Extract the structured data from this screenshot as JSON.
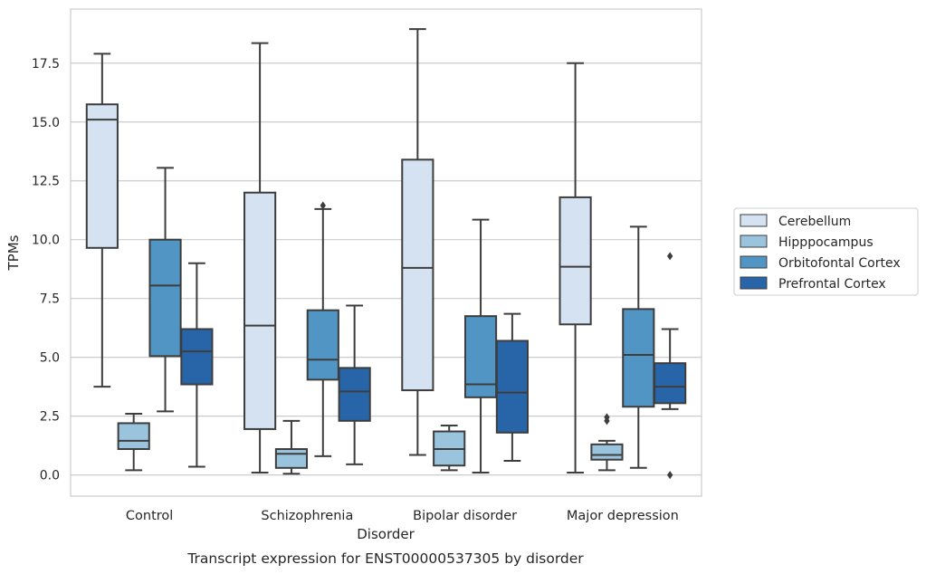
{
  "chart_data": {
    "type": "boxplot",
    "caption": "Transcript expression for ENST00000537305 by disorder",
    "xlabel": "Disorder",
    "ylabel": "TPMs",
    "ylim": [
      -0.9,
      19.8
    ],
    "yticks": [
      0.0,
      2.5,
      5.0,
      7.5,
      10.0,
      12.5,
      15.0,
      17.5
    ],
    "ytick_labels": [
      "0.0",
      "2.5",
      "5.0",
      "7.5",
      "10.0",
      "12.5",
      "15.0",
      "17.5"
    ],
    "grid": "horizontal",
    "legend_position": "right",
    "categories": [
      "Control",
      "Schizophrenia",
      "Bipolar disorder",
      "Major depression"
    ],
    "series": [
      {
        "name": "Cerebellum",
        "color": "#d4e2f1",
        "boxes": [
          {
            "whislo": 3.75,
            "q1": 9.65,
            "med": 15.1,
            "q3": 15.75,
            "whishi": 17.9,
            "fliers": []
          },
          {
            "whislo": 0.1,
            "q1": 1.95,
            "med": 6.35,
            "q3": 12.0,
            "whishi": 18.35,
            "fliers": []
          },
          {
            "whislo": 0.85,
            "q1": 3.6,
            "med": 8.8,
            "q3": 13.4,
            "whishi": 18.95,
            "fliers": []
          },
          {
            "whislo": 0.1,
            "q1": 6.4,
            "med": 8.85,
            "q3": 11.8,
            "whishi": 17.5,
            "fliers": []
          }
        ]
      },
      {
        "name": "Hipppocampus",
        "color": "#9ac3dd",
        "boxes": [
          {
            "whislo": 0.2,
            "q1": 1.1,
            "med": 1.45,
            "q3": 2.2,
            "whishi": 2.6,
            "fliers": []
          },
          {
            "whislo": 0.05,
            "q1": 0.3,
            "med": 0.9,
            "q3": 1.1,
            "whishi": 2.3,
            "fliers": []
          },
          {
            "whislo": 0.2,
            "q1": 0.4,
            "med": 1.1,
            "q3": 1.85,
            "whishi": 2.1,
            "fliers": []
          },
          {
            "whislo": 0.2,
            "q1": 0.65,
            "med": 0.85,
            "q3": 1.3,
            "whishi": 1.45,
            "fliers": [
              2.3,
              2.45
            ]
          }
        ]
      },
      {
        "name": "Orbitofontal Cortex",
        "color": "#5195c5",
        "boxes": [
          {
            "whislo": 2.7,
            "q1": 5.05,
            "med": 8.05,
            "q3": 10.0,
            "whishi": 13.05,
            "fliers": []
          },
          {
            "whislo": 0.8,
            "q1": 4.05,
            "med": 4.9,
            "q3": 7.0,
            "whishi": 11.3,
            "fliers": [
              11.45
            ]
          },
          {
            "whislo": 0.1,
            "q1": 3.3,
            "med": 3.85,
            "q3": 6.75,
            "whishi": 10.85,
            "fliers": []
          },
          {
            "whislo": 0.3,
            "q1": 2.9,
            "med": 5.1,
            "q3": 7.05,
            "whishi": 10.55,
            "fliers": []
          }
        ]
      },
      {
        "name": "Prefrontal Cortex",
        "color": "#2765a8",
        "boxes": [
          {
            "whislo": 0.35,
            "q1": 3.85,
            "med": 5.25,
            "q3": 6.2,
            "whishi": 9.0,
            "fliers": []
          },
          {
            "whislo": 0.45,
            "q1": 2.3,
            "med": 3.55,
            "q3": 4.55,
            "whishi": 7.2,
            "fliers": []
          },
          {
            "whislo": 0.6,
            "q1": 1.8,
            "med": 3.5,
            "q3": 5.7,
            "whishi": 6.85,
            "fliers": []
          },
          {
            "whislo": 2.8,
            "q1": 3.05,
            "med": 3.75,
            "q3": 4.75,
            "whishi": 6.2,
            "fliers": [
              0.0,
              9.3
            ]
          }
        ]
      }
    ]
  }
}
